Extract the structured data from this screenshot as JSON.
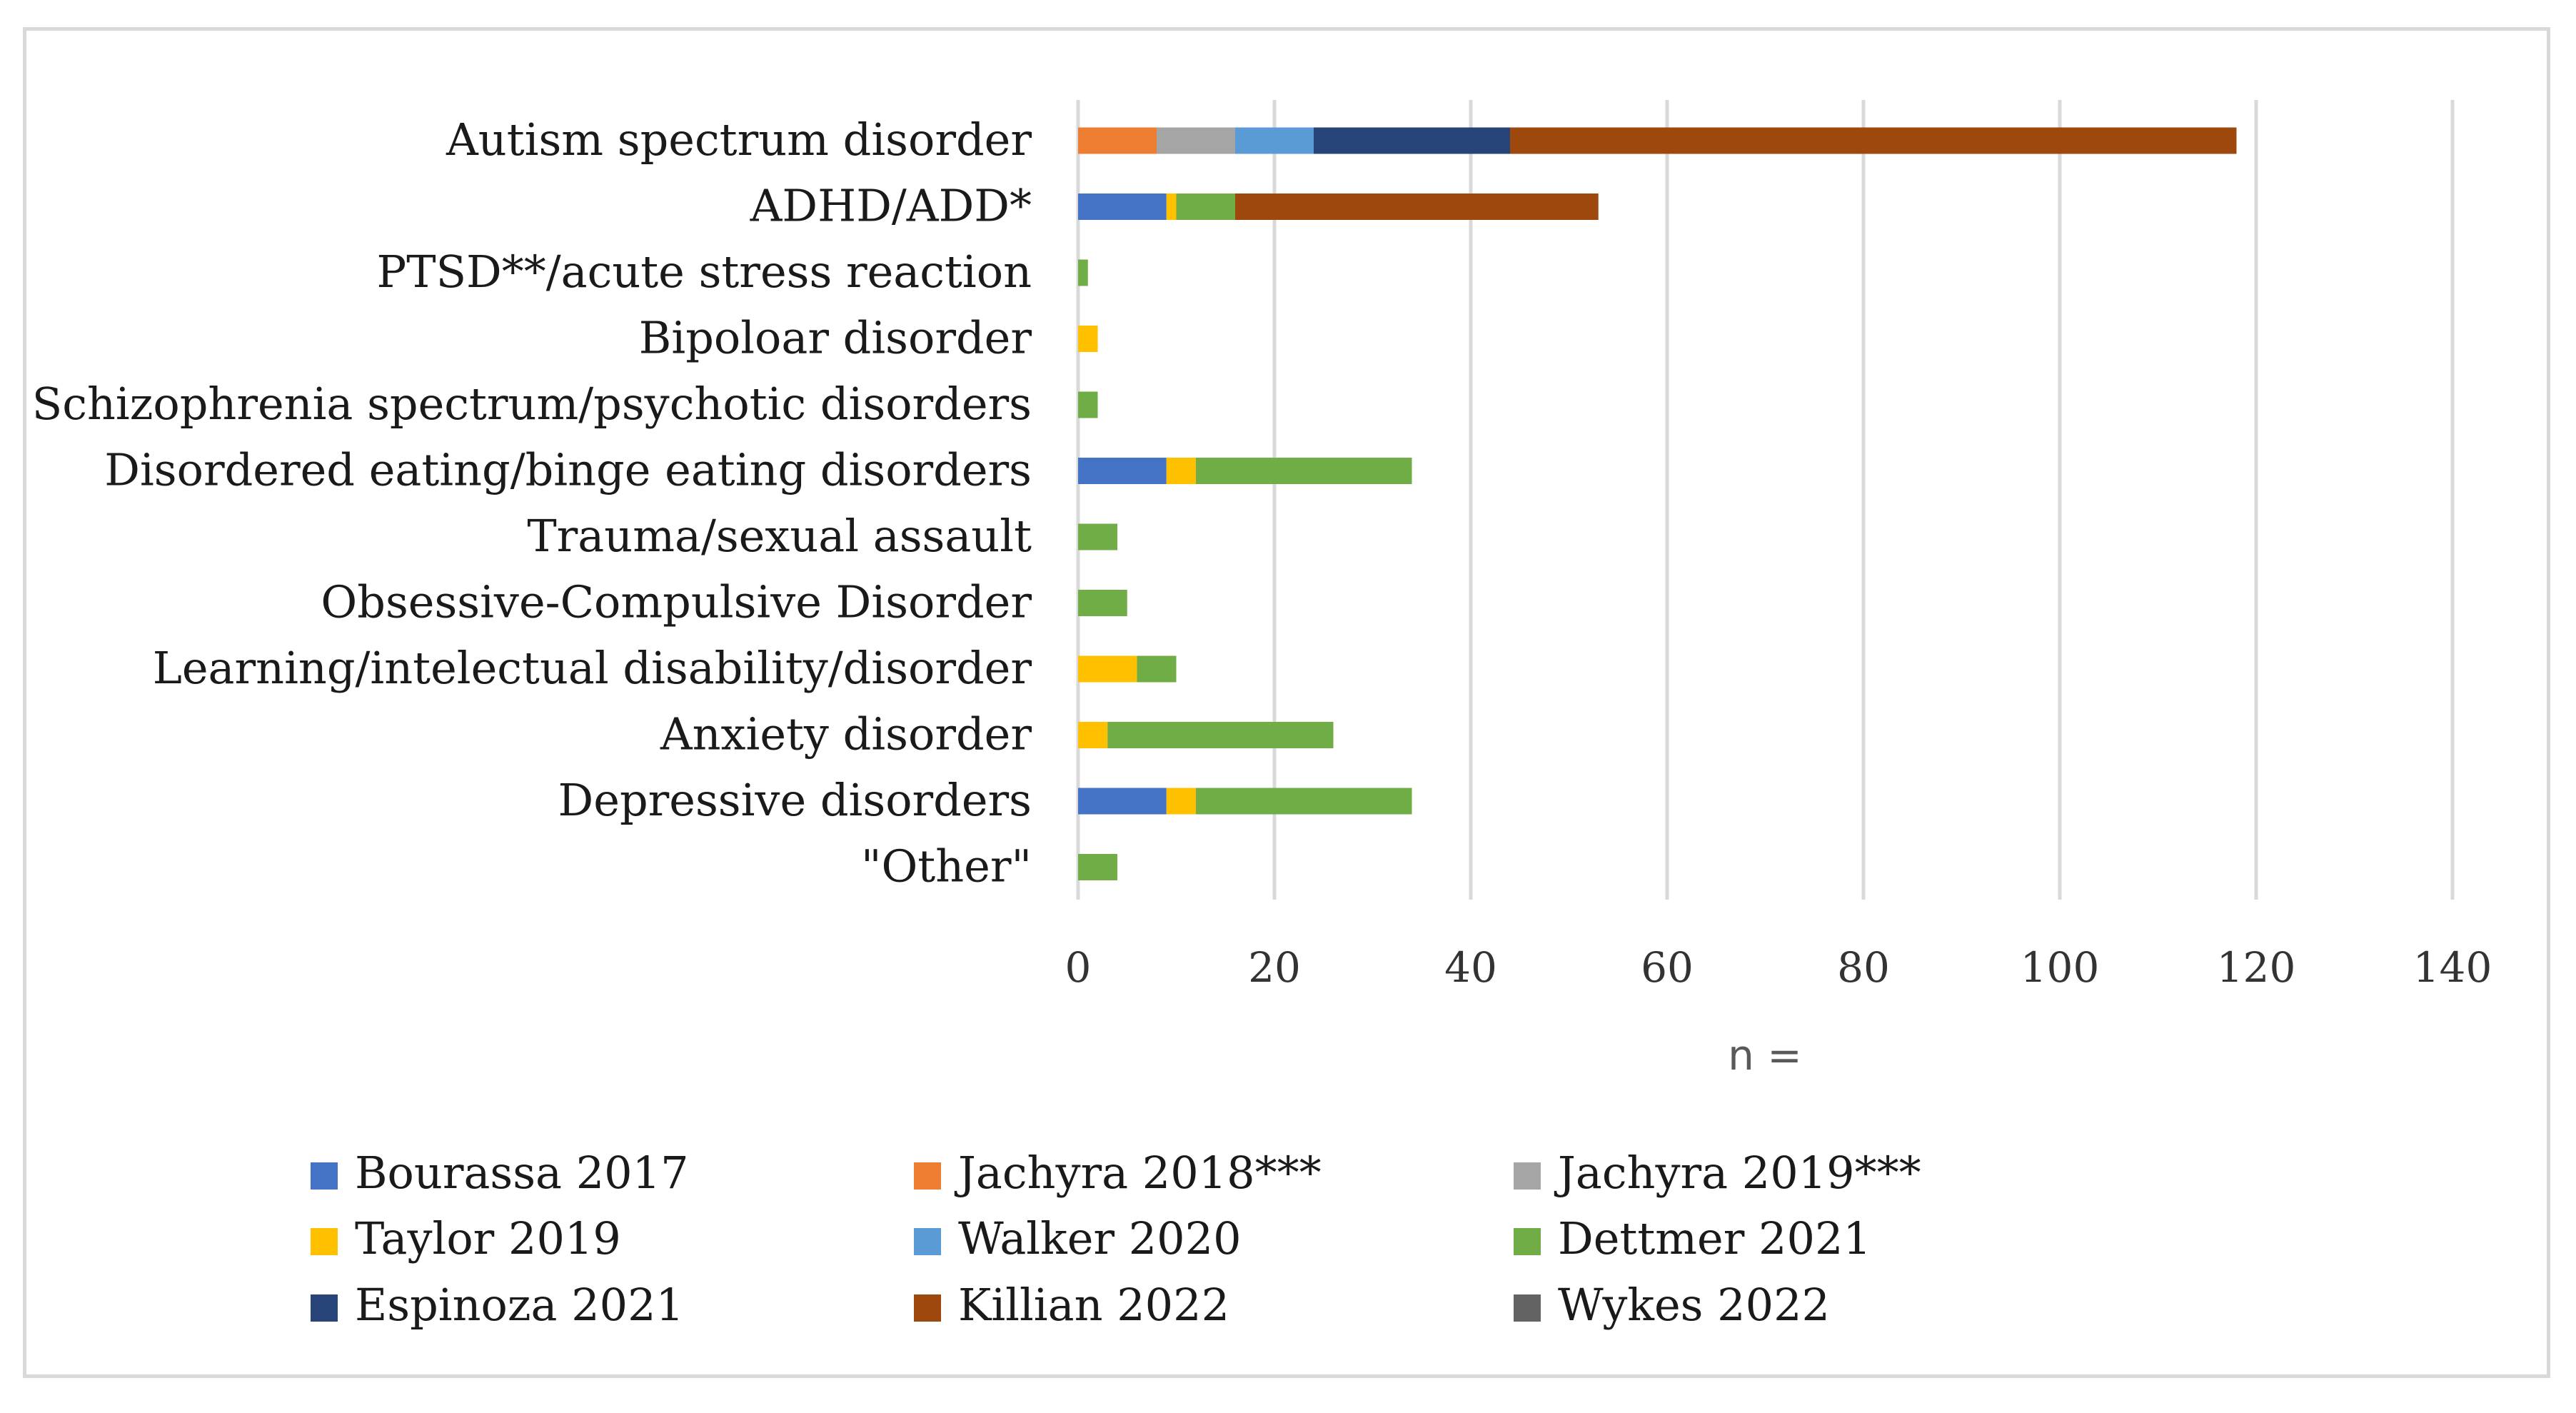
{
  "chart_data": {
    "type": "bar",
    "orientation": "horizontal",
    "stacked": true,
    "title": "",
    "xlabel": "n =",
    "ylabel": "",
    "xlim": [
      0,
      140
    ],
    "xticks": [
      0,
      20,
      40,
      60,
      80,
      100,
      120,
      140
    ],
    "grid": true,
    "legend_position": "bottom",
    "categories": [
      "Autism spectrum disorder",
      "ADHD/ADD*",
      "PTSD**/acute stress reaction",
      "Bipoloar disorder",
      "Schizophrenia spectrum/psychotic disorders",
      "Disordered eating/binge eating disorders",
      "Trauma/sexual assault ",
      "Obsessive-Compulsive Disorder",
      "Learning/intelectual disability/disorder",
      "Anxiety disorder",
      "Depressive disorders",
      "\"Other\""
    ],
    "series": [
      {
        "name": "Bourassa 2017",
        "color": "#4472c4",
        "values": [
          0,
          9,
          0,
          0,
          0,
          9,
          0,
          0,
          0,
          0,
          9,
          0
        ]
      },
      {
        "name": "Jachyra 2018***",
        "color": "#ed7d31",
        "values": [
          8,
          0,
          0,
          0,
          0,
          0,
          0,
          0,
          0,
          0,
          0,
          0
        ]
      },
      {
        "name": "Jachyra 2019***",
        "color": "#a5a5a5",
        "values": [
          8,
          0,
          0,
          0,
          0,
          0,
          0,
          0,
          0,
          0,
          0,
          0
        ]
      },
      {
        "name": "Taylor 2019",
        "color": "#ffc000",
        "values": [
          0,
          1,
          0,
          2,
          0,
          3,
          0,
          0,
          6,
          3,
          3,
          0
        ]
      },
      {
        "name": "Walker 2020",
        "color": "#5b9bd5",
        "values": [
          8,
          0,
          0,
          0,
          0,
          0,
          0,
          0,
          0,
          0,
          0,
          0
        ]
      },
      {
        "name": "Dettmer 2021",
        "color": "#70ad47",
        "values": [
          0,
          6,
          1,
          0,
          2,
          22,
          4,
          5,
          4,
          23,
          22,
          4
        ]
      },
      {
        "name": "Espinoza 2021",
        "color": "#264478",
        "values": [
          20,
          0,
          0,
          0,
          0,
          0,
          0,
          0,
          0,
          0,
          0,
          0
        ]
      },
      {
        "name": "Killian 2022",
        "color": "#9e480e",
        "values": [
          74,
          37,
          0,
          0,
          0,
          0,
          0,
          0,
          0,
          0,
          0,
          0
        ]
      },
      {
        "name": "Wykes 2022",
        "color": "#636363",
        "values": [
          0,
          0,
          0,
          0,
          0,
          0,
          0,
          0,
          0,
          0,
          0,
          0
        ]
      }
    ]
  }
}
